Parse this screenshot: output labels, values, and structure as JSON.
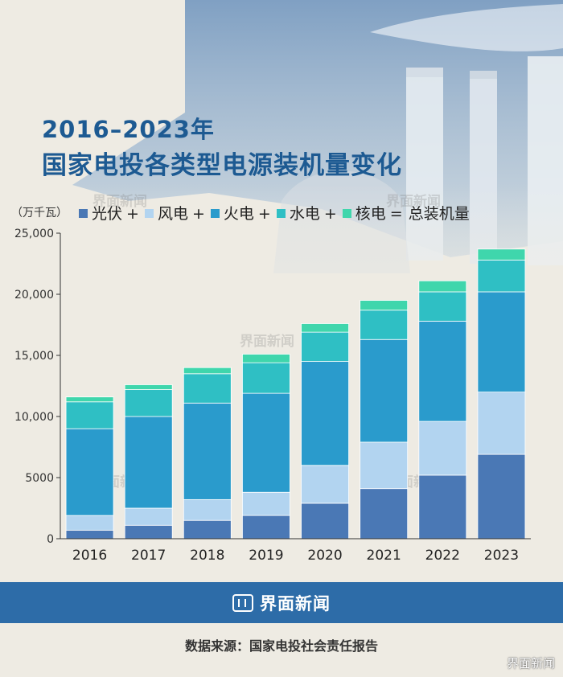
{
  "title_line1": "2016–2023年",
  "title_line2": "国家电投各类型电源装机量变化",
  "watermark_text": "界面新闻",
  "colors": {
    "solar": "#4a78b5",
    "wind": "#b2d4f0",
    "thermal": "#2a9bcc",
    "hydro": "#2fbfc4",
    "nuclear": "#3fd6ac",
    "footer_band": "#2d6ca8",
    "title": "#1d5a92"
  },
  "chart_data": {
    "type": "bar",
    "stacked": true,
    "categories": [
      "2016",
      "2017",
      "2018",
      "2019",
      "2020",
      "2021",
      "2022",
      "2023"
    ],
    "unit": "（万千瓦）",
    "ylim": [
      0,
      25000
    ],
    "yticks": [
      "25,000",
      "20,000",
      "15,000",
      "10,000",
      "5000",
      "0"
    ],
    "ytick_values": [
      25000,
      20000,
      15000,
      10000,
      5000,
      0
    ],
    "legend_position": "top",
    "legend": {
      "items": [
        "光伏",
        "风电",
        "火电",
        "水电",
        "核电"
      ],
      "operators": [
        "+",
        "+",
        "+",
        "+",
        "="
      ],
      "total_label": "总装机量"
    },
    "series": [
      {
        "name": "光伏",
        "values": [
          700,
          1100,
          1500,
          1900,
          2900,
          4100,
          5200,
          6900
        ]
      },
      {
        "name": "风电",
        "values": [
          1200,
          1400,
          1700,
          1900,
          3100,
          3800,
          4400,
          5100
        ]
      },
      {
        "name": "火电",
        "values": [
          7100,
          7500,
          7900,
          8100,
          8500,
          8400,
          8200,
          8200
        ]
      },
      {
        "name": "水电",
        "values": [
          2200,
          2200,
          2400,
          2500,
          2400,
          2400,
          2400,
          2600
        ]
      },
      {
        "name": "核电",
        "values": [
          400,
          400,
          500,
          700,
          700,
          800,
          900,
          900
        ]
      }
    ]
  },
  "footer": {
    "brand": "界面新闻",
    "source": "数据来源：国家电投社会责任报告",
    "weibo": "界面新闻"
  }
}
